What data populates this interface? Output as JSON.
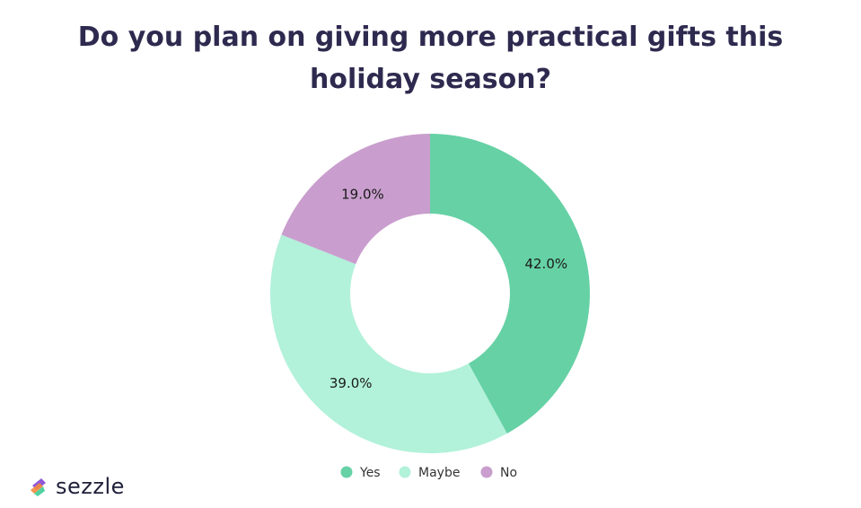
{
  "chart_data": {
    "type": "pie",
    "title": "Do you plan on giving more practical gifts this holiday season?",
    "categories": [
      "Yes",
      "Maybe",
      "No"
    ],
    "values": [
      42.0,
      39.0,
      19.0
    ],
    "labels": [
      "42.0%",
      "39.0%",
      "19.0%"
    ],
    "colors": [
      "#66d1a5",
      "#b2f1da",
      "#c99ece"
    ],
    "donut": true,
    "legend": "bottom"
  },
  "brand": {
    "name": "sezzle",
    "logo_colors": [
      "#8e59d8",
      "#f58a3c",
      "#4fd1a1"
    ]
  }
}
